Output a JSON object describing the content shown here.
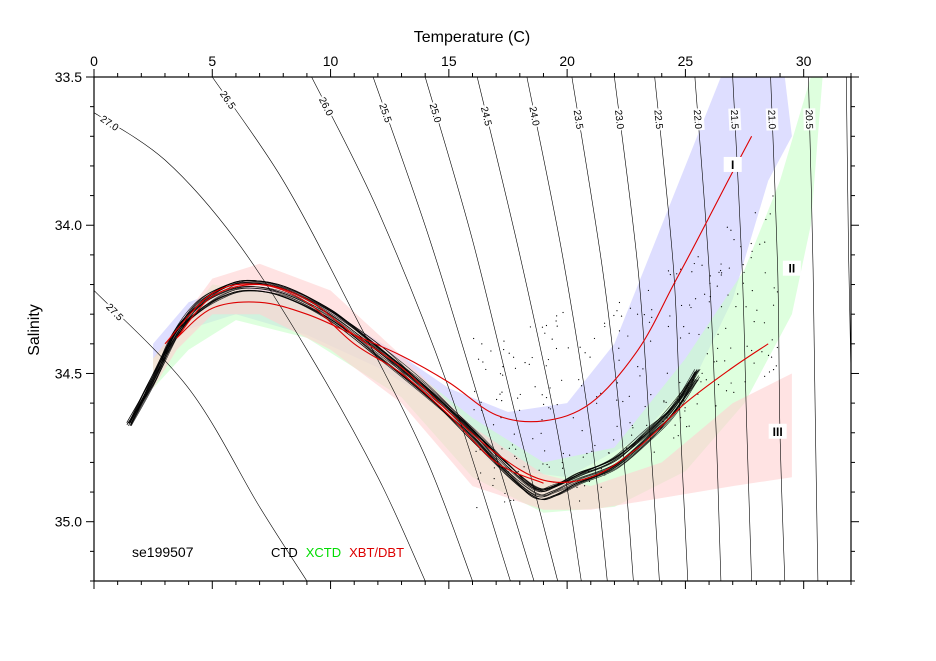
{
  "chart_data": {
    "type": "scatter",
    "title": "",
    "xlabel": "Temperature (C)",
    "ylabel": "Salinity",
    "xlim": [
      0,
      32
    ],
    "ylim": [
      35.2,
      33.5
    ],
    "y_axis_inverted": true,
    "x_axis_position": "top",
    "x_ticks": [
      "0",
      "5",
      "10",
      "15",
      "20",
      "25",
      "30"
    ],
    "y_ticks": [
      "33.5",
      "34.0",
      "34.5",
      "35.0"
    ],
    "station_label": "se199507",
    "legend": [
      {
        "label": "CTD",
        "color": "#000000"
      },
      {
        "label": "XCTD",
        "color": "#00dd00"
      },
      {
        "label": "XBT/DBT",
        "color": "#dd0000"
      }
    ],
    "isopycnals": [
      {
        "label": "27.5",
        "points": [
          [
            0,
            34.22
          ],
          [
            4,
            34.55
          ],
          [
            7,
            34.95
          ],
          [
            9,
            35.2
          ]
        ]
      },
      {
        "label": "27.0",
        "points": [
          [
            0,
            33.62
          ],
          [
            3,
            33.78
          ],
          [
            6,
            34.05
          ],
          [
            9,
            34.42
          ],
          [
            12,
            34.85
          ],
          [
            14,
            35.2
          ]
        ]
      },
      {
        "label": "26.5",
        "points": [
          [
            5,
            33.5
          ],
          [
            8,
            33.85
          ],
          [
            11,
            34.3
          ],
          [
            14,
            34.78
          ],
          [
            16,
            35.2
          ]
        ]
      },
      {
        "label": "26.0",
        "points": [
          [
            9.2,
            33.5
          ],
          [
            12,
            33.95
          ],
          [
            15,
            34.55
          ],
          [
            17.6,
            35.2
          ]
        ]
      },
      {
        "label": "25.5",
        "points": [
          [
            11.8,
            33.5
          ],
          [
            14.2,
            34.05
          ],
          [
            16.5,
            34.65
          ],
          [
            18.6,
            35.2
          ]
        ]
      },
      {
        "label": "25.0",
        "points": [
          [
            14,
            33.5
          ],
          [
            16,
            34.05
          ],
          [
            18,
            34.7
          ],
          [
            19.6,
            35.2
          ]
        ]
      },
      {
        "label": "24.5",
        "points": [
          [
            16.2,
            33.5
          ],
          [
            18,
            34.1
          ],
          [
            19.6,
            34.7
          ],
          [
            20.6,
            35.2
          ]
        ]
      },
      {
        "label": "24.0",
        "points": [
          [
            18.3,
            33.5
          ],
          [
            19.8,
            34.1
          ],
          [
            21,
            34.7
          ],
          [
            21.7,
            35.2
          ]
        ]
      },
      {
        "label": "23.5",
        "points": [
          [
            20.2,
            33.5
          ],
          [
            21.5,
            34.15
          ],
          [
            22.3,
            34.7
          ],
          [
            22.8,
            35.2
          ]
        ]
      },
      {
        "label": "23.0",
        "points": [
          [
            22,
            33.5
          ],
          [
            23,
            34.15
          ],
          [
            23.5,
            34.7
          ],
          [
            23.9,
            35.2
          ]
        ]
      },
      {
        "label": "22.5",
        "points": [
          [
            23.7,
            33.5
          ],
          [
            24.5,
            34.15
          ],
          [
            24.8,
            34.7
          ],
          [
            25.1,
            35.2
          ]
        ]
      },
      {
        "label": "22.0",
        "points": [
          [
            25.4,
            33.5
          ],
          [
            26,
            34.15
          ],
          [
            26.3,
            34.7
          ],
          [
            26.5,
            35.2
          ]
        ]
      },
      {
        "label": "21.5",
        "points": [
          [
            27,
            33.5
          ],
          [
            27.4,
            34.15
          ],
          [
            27.6,
            34.7
          ],
          [
            27.8,
            35.2
          ]
        ]
      },
      {
        "label": "21.0",
        "points": [
          [
            28.6,
            33.5
          ],
          [
            28.9,
            34.15
          ],
          [
            29.0,
            34.7
          ],
          [
            29.2,
            35.2
          ]
        ]
      },
      {
        "label": "20.5",
        "points": [
          [
            30.2,
            33.5
          ],
          [
            30.4,
            34.15
          ],
          [
            30.5,
            34.7
          ],
          [
            30.6,
            35.2
          ]
        ]
      },
      {
        "label": "",
        "points": [
          [
            31.8,
            33.5
          ],
          [
            31.9,
            34.1
          ],
          [
            32,
            34.5
          ]
        ]
      }
    ],
    "envelopes": [
      {
        "name": "I",
        "color": "#c8c8ff",
        "points": [
          [
            2.5,
            34.4
          ],
          [
            4,
            34.26
          ],
          [
            6,
            34.2
          ],
          [
            9,
            34.24
          ],
          [
            13,
            34.44
          ],
          [
            15,
            34.55
          ],
          [
            17.5,
            34.63
          ],
          [
            20,
            34.6
          ],
          [
            22,
            34.4
          ],
          [
            23.5,
            34.1
          ],
          [
            25.5,
            33.7
          ],
          [
            26.5,
            33.5
          ],
          [
            29.2,
            33.5
          ],
          [
            29.5,
            33.7
          ],
          [
            28.5,
            33.85
          ],
          [
            27,
            34.25
          ],
          [
            25.5,
            34.5
          ],
          [
            23,
            34.72
          ],
          [
            20,
            34.85
          ],
          [
            17,
            34.82
          ],
          [
            14.5,
            34.6
          ],
          [
            12,
            34.48
          ],
          [
            9,
            34.37
          ],
          [
            6,
            34.3
          ],
          [
            4,
            34.35
          ],
          [
            2.5,
            34.45
          ]
        ]
      },
      {
        "name": "II",
        "color": "#c8ffc8",
        "points": [
          [
            2.5,
            34.45
          ],
          [
            5,
            34.2
          ],
          [
            9,
            34.24
          ],
          [
            13,
            34.46
          ],
          [
            16,
            34.65
          ],
          [
            19,
            34.8
          ],
          [
            22,
            34.75
          ],
          [
            25,
            34.45
          ],
          [
            27.5,
            34.15
          ],
          [
            29,
            33.85
          ],
          [
            30.3,
            33.5
          ],
          [
            30.8,
            33.5
          ],
          [
            30.3,
            34.0
          ],
          [
            29.5,
            34.3
          ],
          [
            27.5,
            34.6
          ],
          [
            25,
            34.83
          ],
          [
            22,
            34.95
          ],
          [
            19,
            34.97
          ],
          [
            16,
            34.85
          ],
          [
            13,
            34.58
          ],
          [
            9,
            34.38
          ],
          [
            6,
            34.32
          ],
          [
            4,
            34.42
          ],
          [
            2.5,
            34.55
          ]
        ]
      },
      {
        "name": "III",
        "color": "#ffd0d0",
        "points": [
          [
            2.5,
            34.45
          ],
          [
            5,
            34.18
          ],
          [
            7,
            34.13
          ],
          [
            10,
            34.22
          ],
          [
            13,
            34.44
          ],
          [
            16,
            34.68
          ],
          [
            19,
            34.84
          ],
          [
            21,
            34.88
          ],
          [
            24,
            34.8
          ],
          [
            27,
            34.6
          ],
          [
            29.5,
            34.5
          ],
          [
            29.5,
            34.85
          ],
          [
            27,
            34.88
          ],
          [
            24,
            34.92
          ],
          [
            21,
            34.96
          ],
          [
            19,
            34.96
          ],
          [
            16,
            34.88
          ],
          [
            13,
            34.6
          ],
          [
            10,
            34.42
          ],
          [
            7,
            34.3
          ],
          [
            5,
            34.3
          ],
          [
            3.5,
            34.42
          ],
          [
            2.5,
            34.55
          ]
        ]
      }
    ],
    "series": [
      {
        "name": "I",
        "color": "#dd0000",
        "points": [
          [
            3.5,
            34.38
          ],
          [
            5,
            34.28
          ],
          [
            7,
            34.26
          ],
          [
            9,
            34.3
          ],
          [
            11,
            34.37
          ],
          [
            13,
            34.44
          ],
          [
            15,
            34.53
          ],
          [
            17,
            34.64
          ],
          [
            19,
            34.66
          ],
          [
            21,
            34.6
          ],
          [
            23,
            34.42
          ],
          [
            24.5,
            34.2
          ],
          [
            25.5,
            34.05
          ],
          [
            26.8,
            33.85
          ],
          [
            27.8,
            33.7
          ]
        ]
      },
      {
        "name": "II",
        "color": "#dd0000",
        "points": [
          [
            3.5,
            34.38
          ],
          [
            5,
            34.24
          ],
          [
            7,
            34.2
          ],
          [
            9,
            34.25
          ],
          [
            11,
            34.37
          ],
          [
            13,
            34.48
          ],
          [
            15,
            34.63
          ],
          [
            17,
            34.77
          ],
          [
            19,
            34.86
          ],
          [
            21,
            34.85
          ],
          [
            23,
            34.75
          ],
          [
            25,
            34.6
          ],
          [
            27,
            34.48
          ],
          [
            28.5,
            34.4
          ]
        ]
      },
      {
        "name": "",
        "color": "#dd0000",
        "points": [
          [
            3,
            34.4
          ],
          [
            5,
            34.23
          ],
          [
            7,
            34.2
          ],
          [
            9,
            34.26
          ],
          [
            11,
            34.4
          ],
          [
            13,
            34.5
          ],
          [
            15,
            34.64
          ],
          [
            17,
            34.8
          ],
          [
            19,
            34.87
          ]
        ]
      }
    ],
    "ctd": {
      "name": "CTD",
      "color": "#000000",
      "line": [
        [
          1.5,
          34.67
        ],
        [
          2.5,
          34.52
        ],
        [
          3.5,
          34.36
        ],
        [
          4.5,
          34.27
        ],
        [
          5.5,
          34.22
        ],
        [
          6.5,
          34.2
        ],
        [
          8,
          34.22
        ],
        [
          10,
          34.3
        ],
        [
          12,
          34.42
        ],
        [
          14,
          34.55
        ],
        [
          16,
          34.7
        ],
        [
          17.5,
          34.82
        ],
        [
          18.7,
          34.9
        ],
        [
          19.5,
          34.89
        ],
        [
          20.5,
          34.85
        ],
        [
          22,
          34.8
        ],
        [
          23.5,
          34.7
        ],
        [
          24.5,
          34.62
        ],
        [
          25.5,
          34.5
        ]
      ]
    },
    "region_labels": [
      {
        "label": "I",
        "x": 27.0,
        "y": 33.8
      },
      {
        "label": "II",
        "x": 29.5,
        "y": 34.15
      },
      {
        "label": "III",
        "x": 28.9,
        "y": 34.7
      }
    ]
  }
}
